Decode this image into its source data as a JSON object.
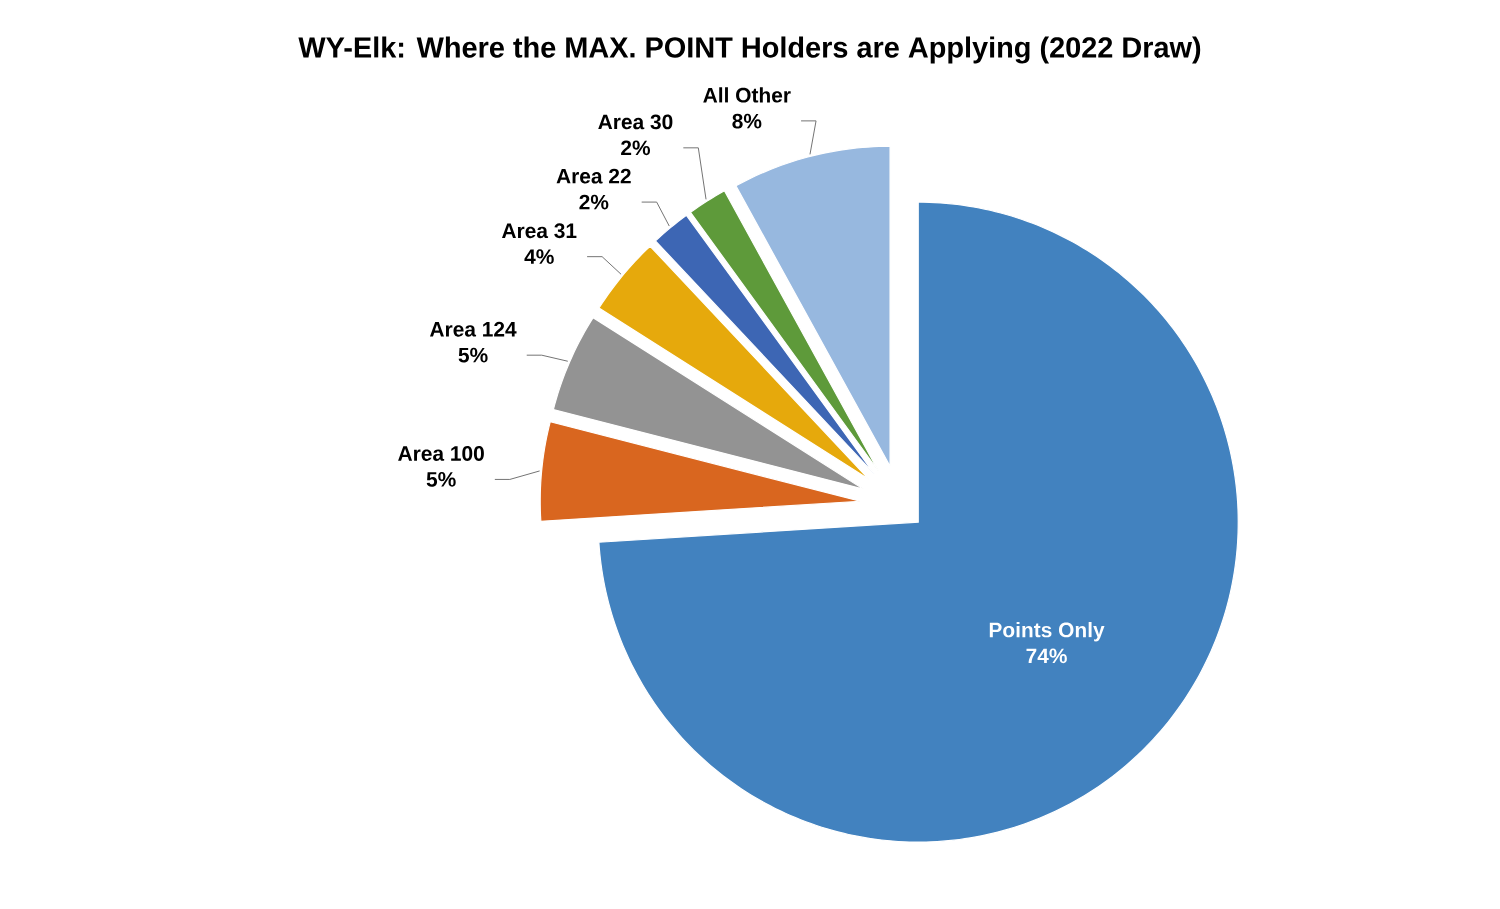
{
  "chart_data": {
    "type": "pie",
    "title": "WY-Elk: Where the MAX. POINT Holders are Applying (2022 Draw)",
    "categories": [
      "Points Only",
      "Area 100",
      "Area 124",
      "Area 31",
      "Area 22",
      "Area 30",
      "All Other"
    ],
    "values": [
      74,
      5,
      5,
      4,
      2,
      2,
      8
    ],
    "colors": [
      "#4282bf",
      "#d9661f",
      "#939393",
      "#e6a90c",
      "#3d66b4",
      "#5e9a3a",
      "#97b8df"
    ],
    "value_labels": [
      "74%",
      "5%",
      "5%",
      "4%",
      "2%",
      "2%",
      "8%"
    ]
  }
}
